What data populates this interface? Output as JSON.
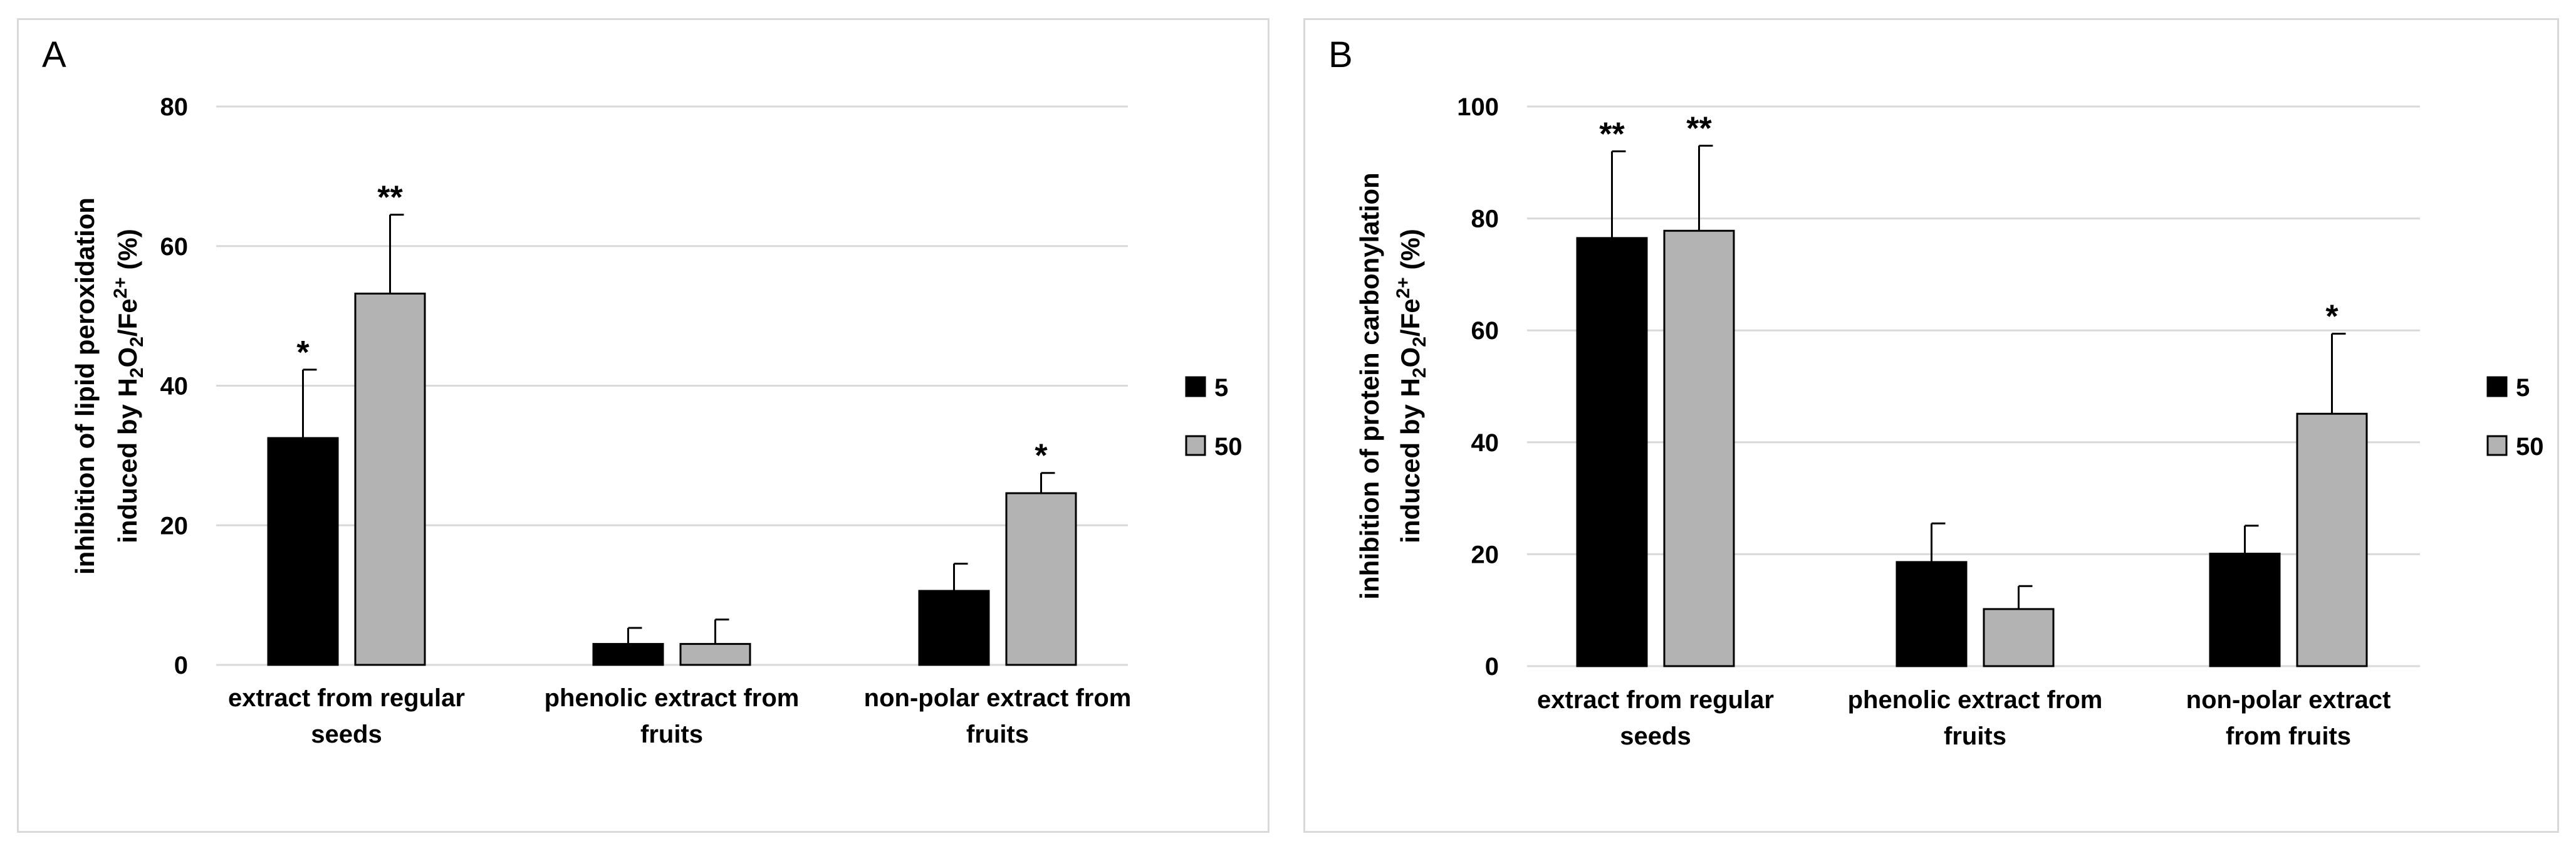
{
  "chart_data": [
    {
      "panel": "A",
      "type": "bar",
      "ylabel_line1": "inhibition of lipid peroxidation",
      "ylabel_line2": [
        "induced by H",
        "2",
        "O",
        "2",
        "/Fe",
        "2+",
        " (%)"
      ],
      "ylim": [
        0,
        80
      ],
      "yticks": [
        0,
        20,
        40,
        60,
        80
      ],
      "categories": [
        [
          "extract from regular",
          "seeds"
        ],
        [
          "phenolic extract from",
          "fruits"
        ],
        [
          "non-polar extract from",
          "fruits"
        ]
      ],
      "series": [
        {
          "name": "5",
          "color": "#000000",
          "values": [
            32.5,
            3.0,
            10.6
          ],
          "errors": [
            9.8,
            2.3,
            3.9
          ],
          "stars": [
            "*",
            "",
            ""
          ]
        },
        {
          "name": "50",
          "color": "#b3b3b3",
          "values": [
            53.2,
            3.0,
            24.6
          ],
          "errors": [
            11.3,
            3.5,
            2.9
          ],
          "stars": [
            "**",
            "",
            "*"
          ]
        }
      ],
      "grid": true,
      "legend_position": "right"
    },
    {
      "panel": "B",
      "type": "bar",
      "ylabel_line1": "inhibition of protein carbonylation",
      "ylabel_line2": [
        "induced by H",
        "2",
        "O",
        "2",
        "/Fe",
        "2+",
        " (%)"
      ],
      "ylim": [
        0,
        100
      ],
      "yticks": [
        0,
        20,
        40,
        60,
        80,
        100
      ],
      "categories": [
        [
          "extract from regular",
          "seeds"
        ],
        [
          "phenolic extract from",
          "fruits"
        ],
        [
          "non-polar extract",
          "from fruits"
        ]
      ],
      "series": [
        {
          "name": "5",
          "color": "#000000",
          "values": [
            76.5,
            18.6,
            20.1
          ],
          "errors": [
            15.5,
            6.9,
            5.0
          ],
          "stars": [
            "**",
            "",
            ""
          ]
        },
        {
          "name": "50",
          "color": "#b3b3b3",
          "values": [
            77.8,
            10.2,
            45.1
          ],
          "errors": [
            15.2,
            4.1,
            14.3
          ],
          "stars": [
            "**",
            "",
            "*"
          ]
        }
      ],
      "grid": true,
      "legend_position": "right"
    }
  ]
}
